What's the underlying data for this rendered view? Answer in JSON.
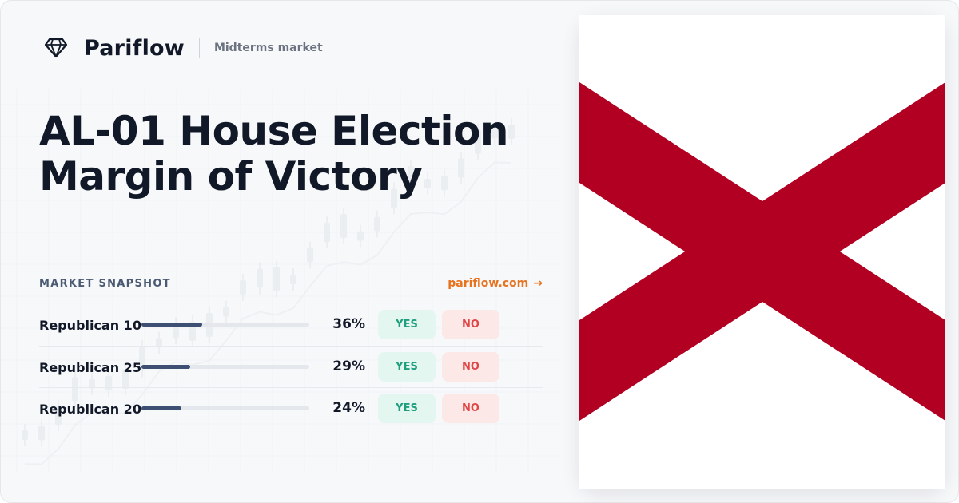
{
  "brand": {
    "name": "Pariflow",
    "tagline": "Midterms market",
    "icon": "diamond-icon"
  },
  "title": {
    "line1": "AL-01 House Election",
    "line2": "Margin of Victory"
  },
  "snapshot": {
    "label": "MARKET SNAPSHOT",
    "link_text": "pariflow.com",
    "link_arrow": "→",
    "rows": [
      {
        "label": "Republican 10",
        "percent": 36,
        "percent_text": "36%",
        "yes": "YES",
        "no": "NO"
      },
      {
        "label": "Republican 25",
        "percent": 29,
        "percent_text": "29%",
        "yes": "YES",
        "no": "NO"
      },
      {
        "label": "Republican 20",
        "percent": 24,
        "percent_text": "24%",
        "yes": "YES",
        "no": "NO"
      }
    ]
  },
  "flag": {
    "name": "alabama-flag",
    "field_color": "#ffffff",
    "saltire_color": "#b10021"
  },
  "colors": {
    "accent": "#e8731f",
    "bar": "#3d4f73",
    "yes_bg": "#e3f6f0",
    "yes_text": "#1e9f7d",
    "no_bg": "#fde8e8",
    "no_text": "#e04848"
  }
}
